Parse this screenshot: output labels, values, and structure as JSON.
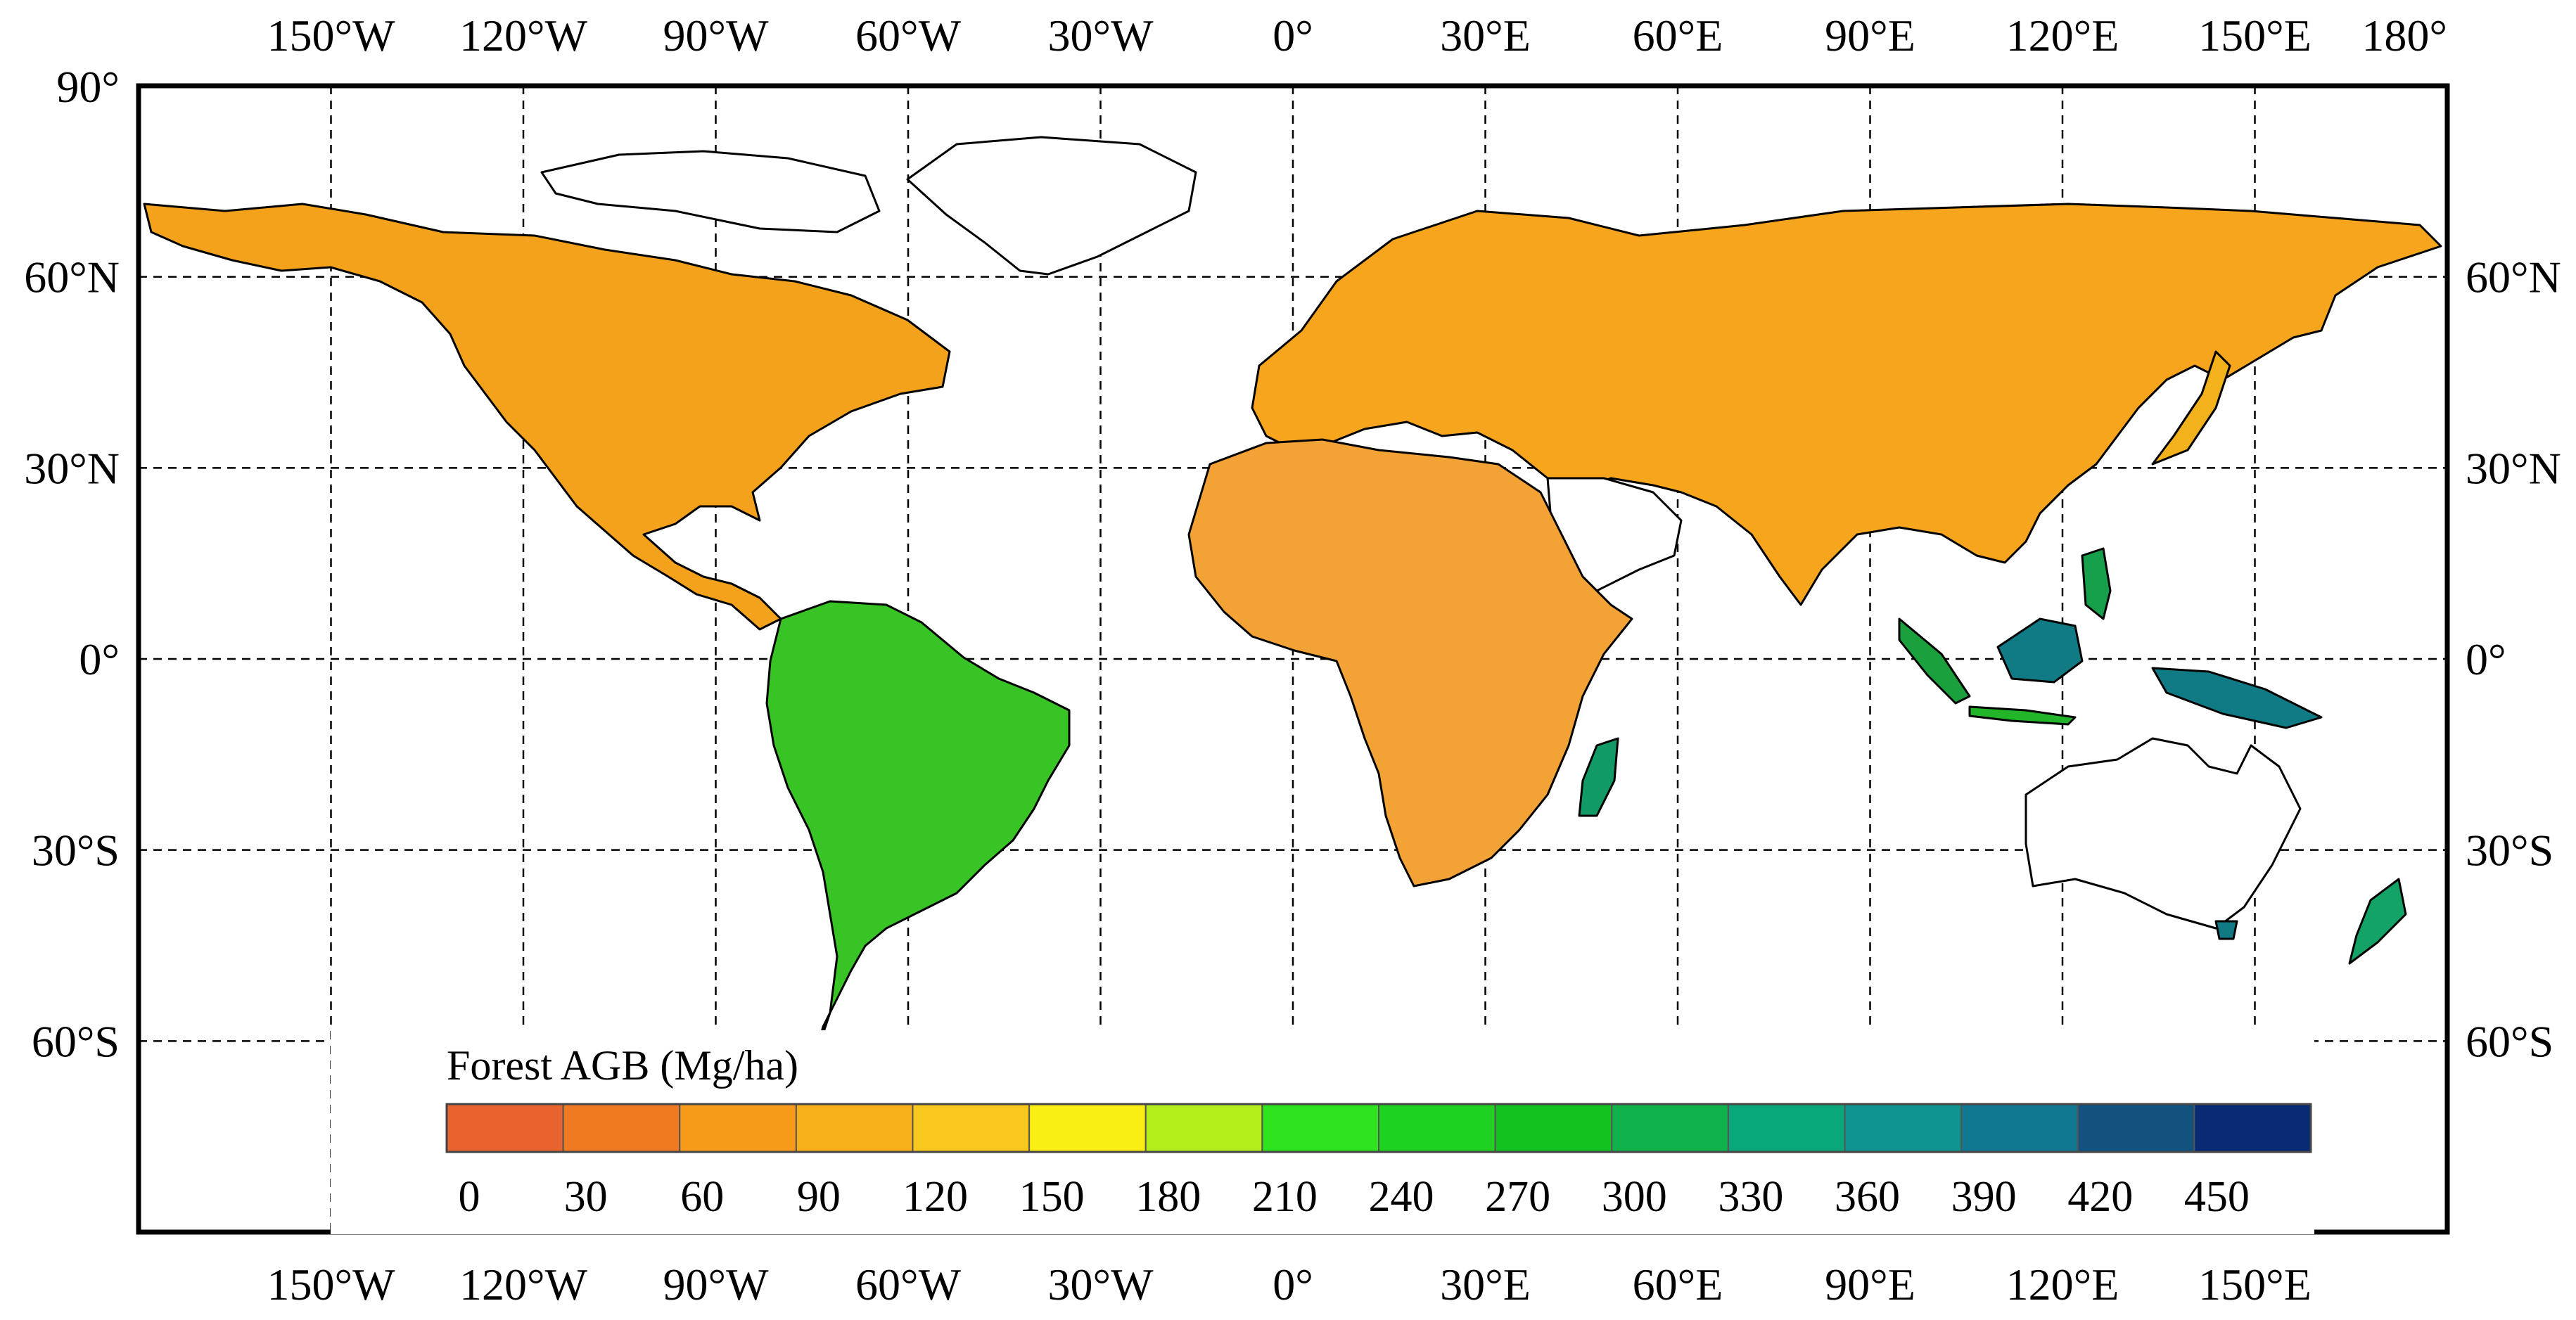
{
  "map": {
    "lon_ticks_top": [
      "150°W",
      "120°W",
      "90°W",
      "60°W",
      "30°W",
      "0°",
      "30°E",
      "60°E",
      "90°E",
      "120°E",
      "150°E",
      "180°"
    ],
    "lon_ticks_bottom": [
      "150°W",
      "120°W",
      "90°W",
      "60°W",
      "30°W",
      "0°",
      "30°E",
      "60°E",
      "90°E",
      "120°E",
      "150°E"
    ],
    "lat_ticks_left": [
      "90°",
      "60°N",
      "30°N",
      "0°",
      "30°S",
      "60°S"
    ],
    "lat_ticks_right": [
      "60°N",
      "30°N",
      "0°",
      "30°S",
      "60°S"
    ],
    "graticule_lon_deg": [
      -150,
      -120,
      -90,
      -60,
      -30,
      0,
      30,
      60,
      90,
      120,
      150
    ],
    "graticule_lat_deg": [
      60,
      30,
      0,
      -30,
      -60
    ],
    "extent": {
      "lon_min": -180,
      "lon_max": 180,
      "lat_min": -90,
      "lat_max": 90
    }
  },
  "legend": {
    "title": "Forest AGB (Mg/ha)",
    "tick_labels": [
      "0",
      "30",
      "60",
      "90",
      "120",
      "150",
      "180",
      "210",
      "240",
      "270",
      "300",
      "330",
      "360",
      "390",
      "420",
      "450"
    ],
    "colors": [
      "#e8632e",
      "#f07a22",
      "#f79a1a",
      "#f8b01a",
      "#f8c81c",
      "#fbee12",
      "#b4ee1b",
      "#2fe31f",
      "#1fd120",
      "#14c21f",
      "#0fb24b",
      "#0aa77a",
      "#0f948f",
      "#117891",
      "#13517f",
      "#0a2a73"
    ]
  }
}
